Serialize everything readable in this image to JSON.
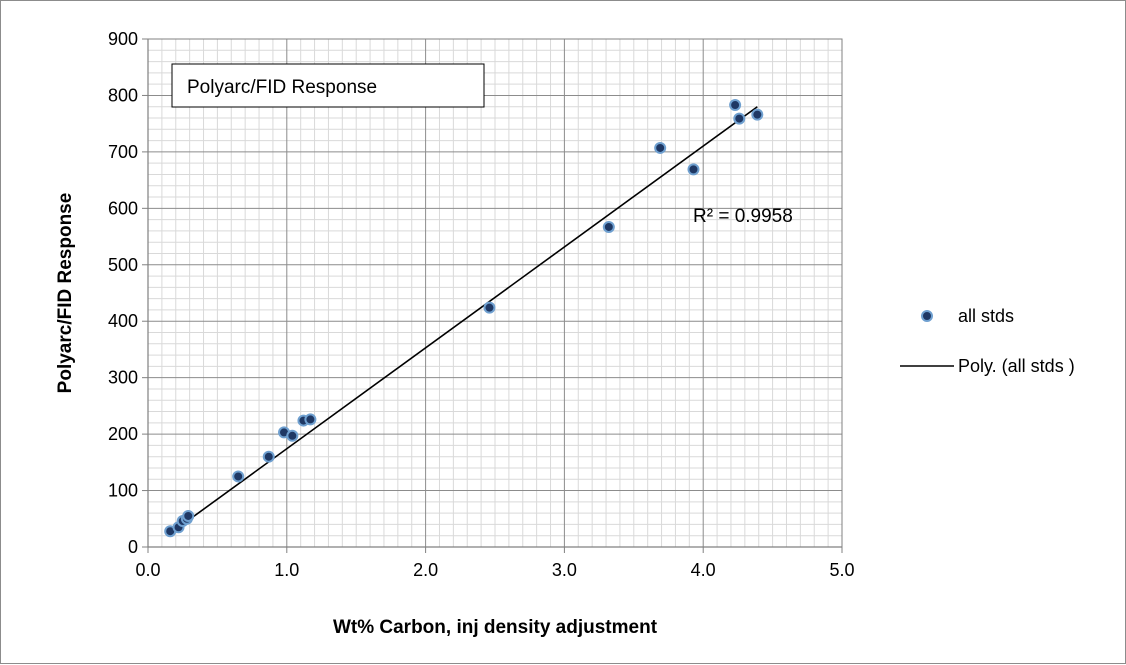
{
  "chart_data": {
    "type": "scatter",
    "title": "Polyarc/FID Response",
    "xlabel": "Wt% Carbon, inj density adjustment",
    "ylabel": "Polyarc/FID Response",
    "xlim": [
      0,
      5
    ],
    "ylim": [
      0,
      900
    ],
    "x_ticks": [
      "0.0",
      "1.0",
      "2.0",
      "3.0",
      "4.0",
      "5.0"
    ],
    "y_ticks": [
      "0",
      "100",
      "200",
      "300",
      "400",
      "500",
      "600",
      "700",
      "800",
      "900"
    ],
    "grid": true,
    "legend_position": "right",
    "annotation": "R² = 0.9958",
    "series": [
      {
        "name": "all stds",
        "kind": "scatter",
        "color": "#1f3864",
        "edge_color": "#6fa0d0",
        "points": [
          [
            0.16,
            28
          ],
          [
            0.22,
            35
          ],
          [
            0.25,
            46
          ],
          [
            0.28,
            50
          ],
          [
            0.29,
            55
          ],
          [
            0.65,
            125
          ],
          [
            0.87,
            160
          ],
          [
            0.98,
            203
          ],
          [
            1.04,
            197
          ],
          [
            1.12,
            224
          ],
          [
            1.17,
            226
          ],
          [
            2.46,
            424
          ],
          [
            3.32,
            567
          ],
          [
            3.69,
            707
          ],
          [
            3.93,
            669
          ],
          [
            4.23,
            783
          ],
          [
            4.26,
            759
          ],
          [
            4.39,
            766
          ]
        ]
      },
      {
        "name": "Poly. (all stds )",
        "kind": "line",
        "color": "#000000",
        "points": [
          [
            0.16,
            24
          ],
          [
            4.39,
            780
          ]
        ]
      }
    ]
  }
}
